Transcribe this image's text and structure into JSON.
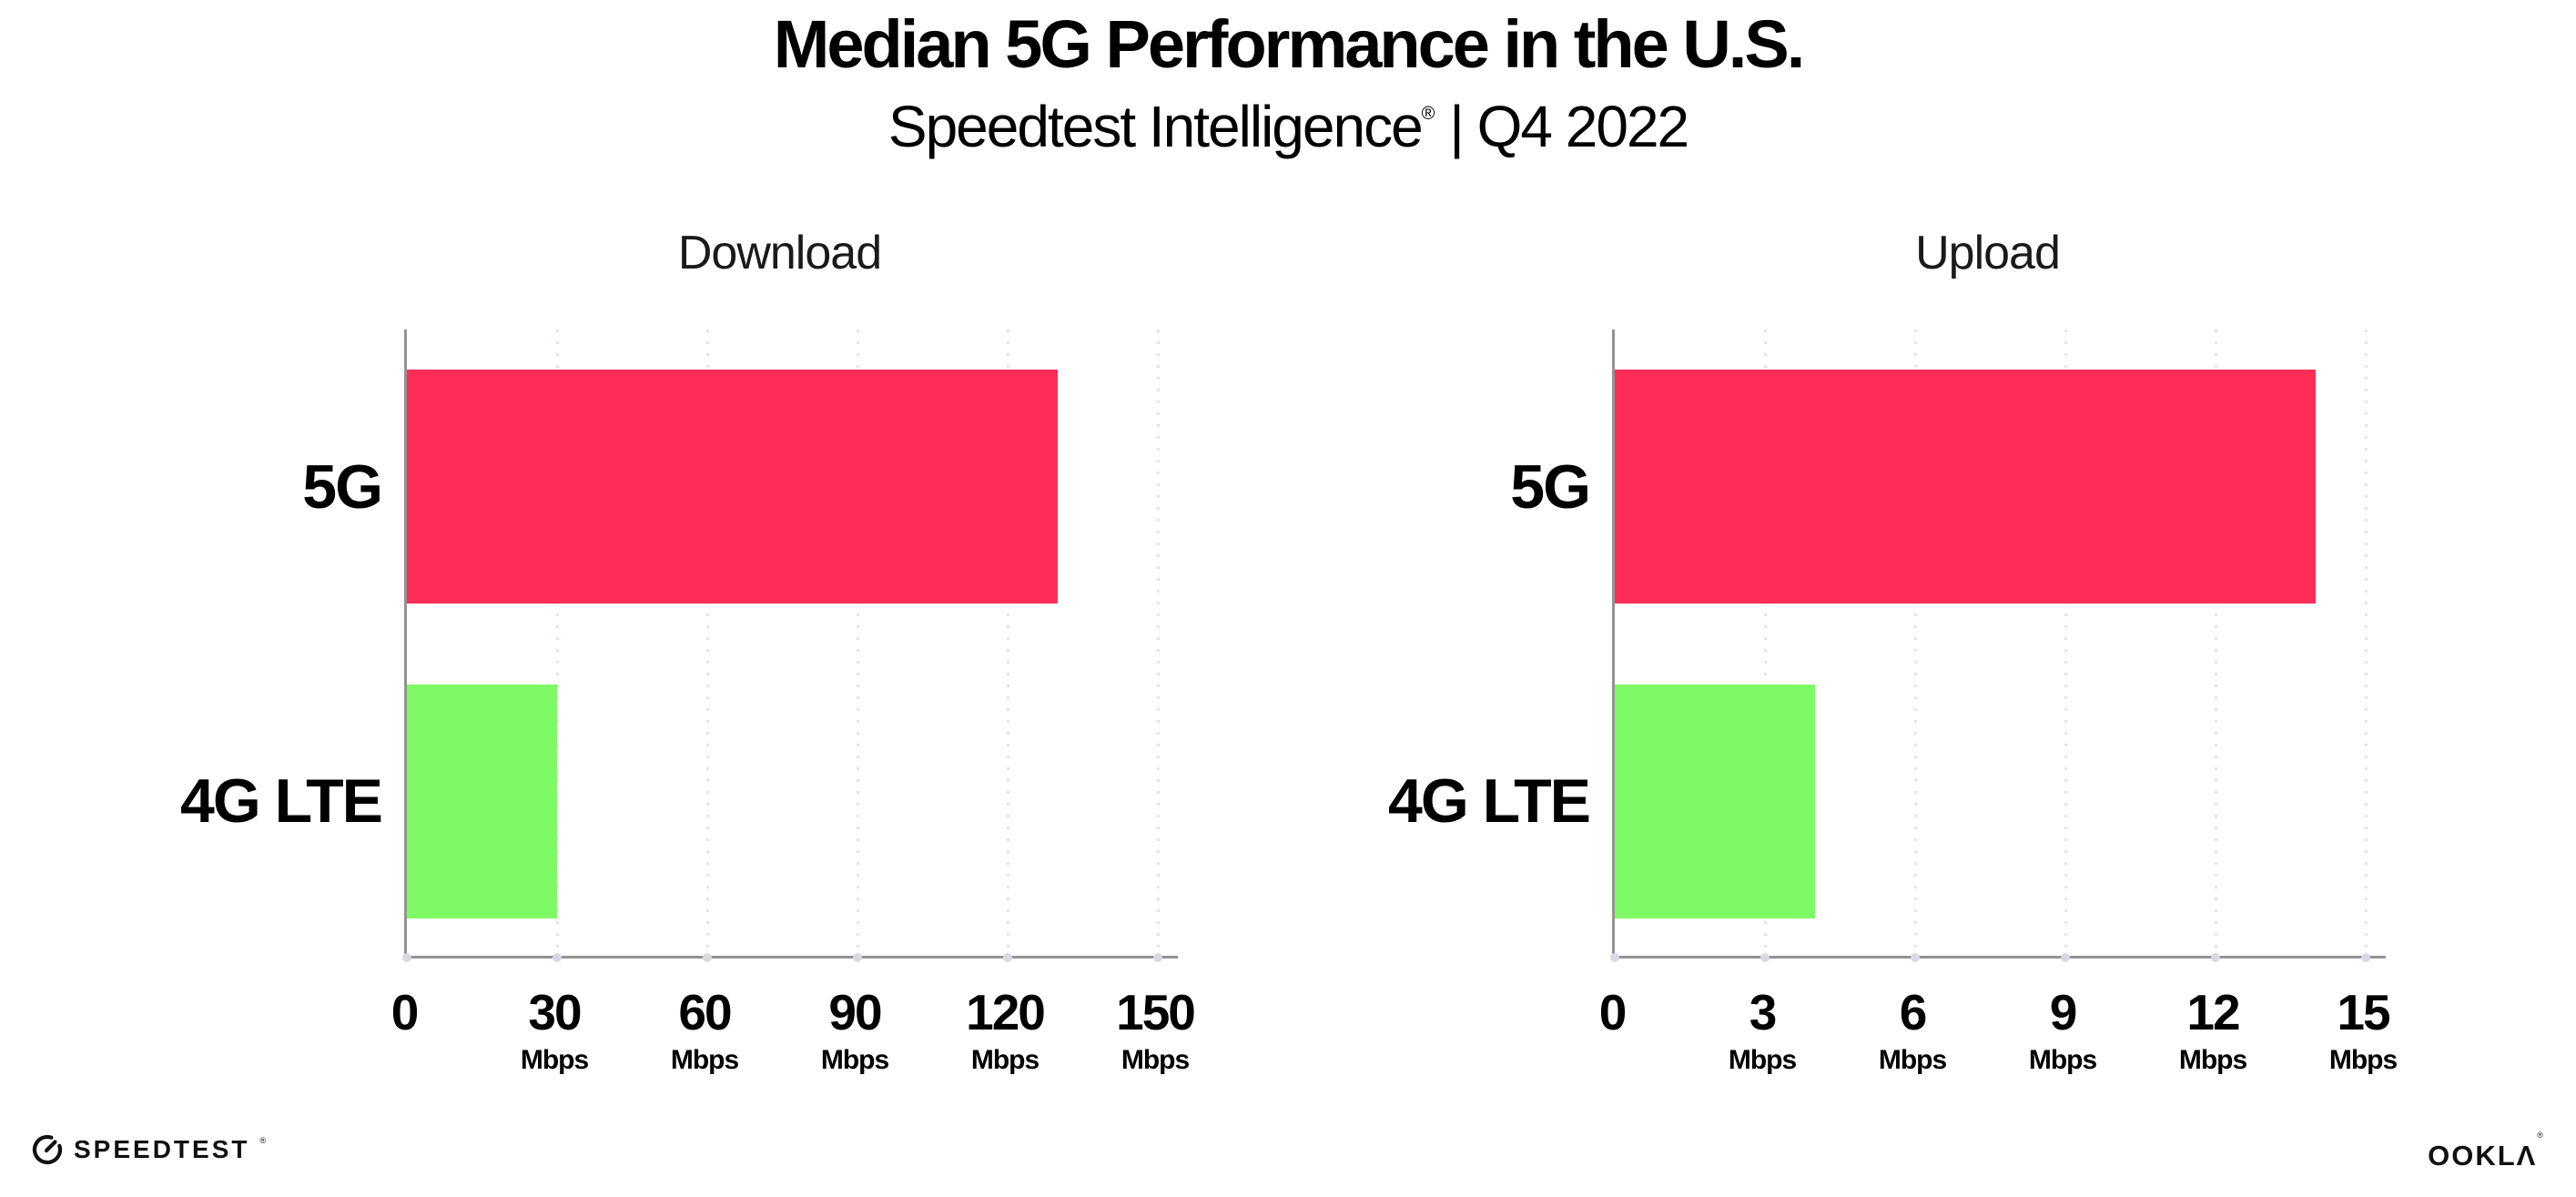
{
  "header": {
    "title": "Median 5G Performance in the U.S.",
    "subtitle_brand": "Speedtest Intelligence",
    "subtitle_reg_mark": "®",
    "subtitle_separator": " | ",
    "subtitle_period": "Q4 2022"
  },
  "chart_data": [
    {
      "type": "bar",
      "orientation": "horizontal",
      "title": "Download",
      "categories": [
        "5G",
        "4G LTE"
      ],
      "values": [
        130,
        30
      ],
      "unit": "Mbps",
      "xlabel": "",
      "xlim": [
        0,
        150
      ],
      "xticks": [
        0,
        30,
        60,
        90,
        120,
        150
      ],
      "bar_colors": [
        "#fd2d57",
        "#7efa64"
      ],
      "grid": "vertical-dotted",
      "legend": "none"
    },
    {
      "type": "bar",
      "orientation": "horizontal",
      "title": "Upload",
      "categories": [
        "5G",
        "4G LTE"
      ],
      "values": [
        14,
        4
      ],
      "unit": "Mbps",
      "xlabel": "",
      "xlim": [
        0,
        15
      ],
      "xticks": [
        0,
        3,
        6,
        9,
        12,
        15
      ],
      "bar_colors": [
        "#fd2d57",
        "#7efa64"
      ],
      "grid": "vertical-dotted",
      "legend": "none"
    }
  ],
  "colors": {
    "bar_5g": "#fd2d57",
    "bar_4g_lte": "#7efa64",
    "axis": "#939393",
    "gridline": "#e3e3ed",
    "text": "#000000",
    "background": "#ffffff"
  },
  "footer": {
    "speedtest_logo_text": "SPEEDTEST",
    "speedtest_trademark": "®",
    "ookla_logo_text": "OOKLΛ",
    "ookla_trademark": "®"
  }
}
